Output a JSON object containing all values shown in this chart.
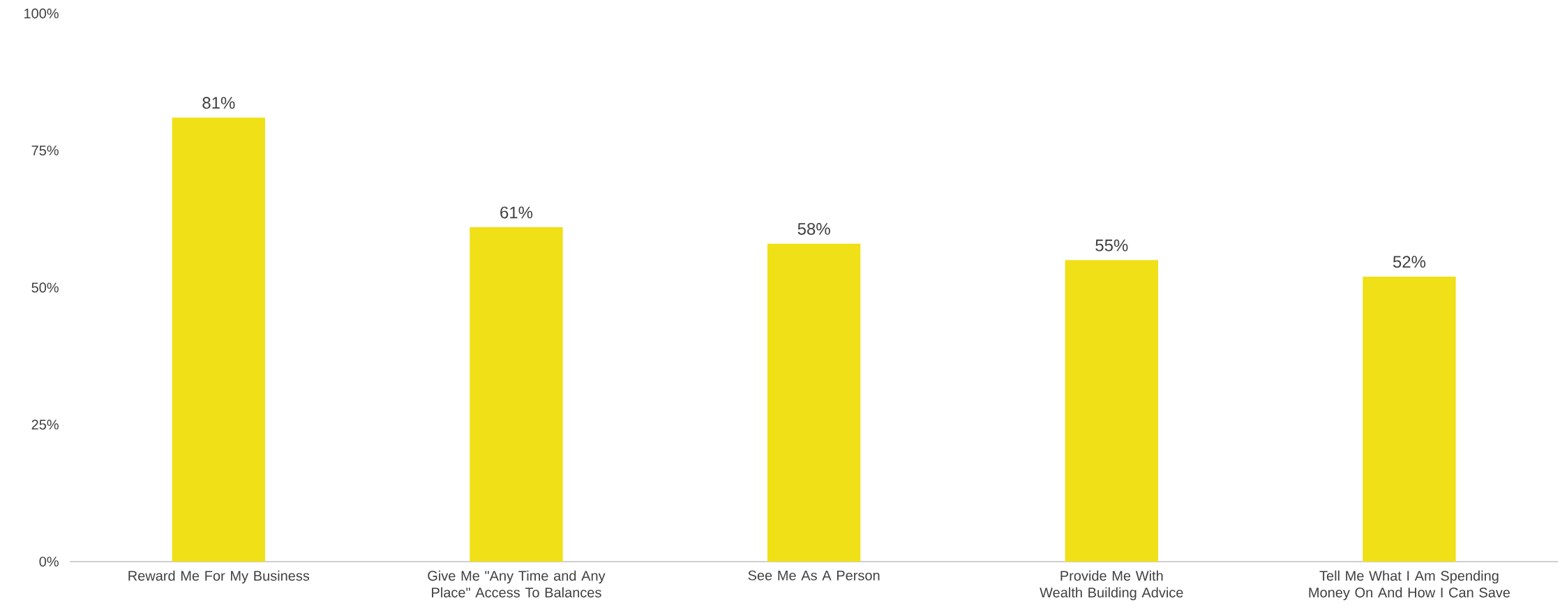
{
  "chart_data": {
    "type": "bar",
    "categories": [
      "Reward Me For My Business",
      "Give Me \"Any Time and Any Place\" Access To Balances",
      "See Me As A Person",
      "Provide Me With Wealth Building Advice",
      "Tell Me What I Am Spending Money On And How I Can Save"
    ],
    "values": [
      81,
      61,
      58,
      55,
      52
    ],
    "value_labels": [
      "81%",
      "61%",
      "58%",
      "55%",
      "52%"
    ],
    "color": "#efe017",
    "ylim": [
      0,
      100
    ],
    "yticks": [
      {
        "value": 0,
        "label": "0%"
      },
      {
        "value": 25,
        "label": "25%"
      },
      {
        "value": 50,
        "label": "50%"
      },
      {
        "value": 75,
        "label": "75%"
      },
      {
        "value": 100,
        "label": "100%"
      }
    ]
  }
}
